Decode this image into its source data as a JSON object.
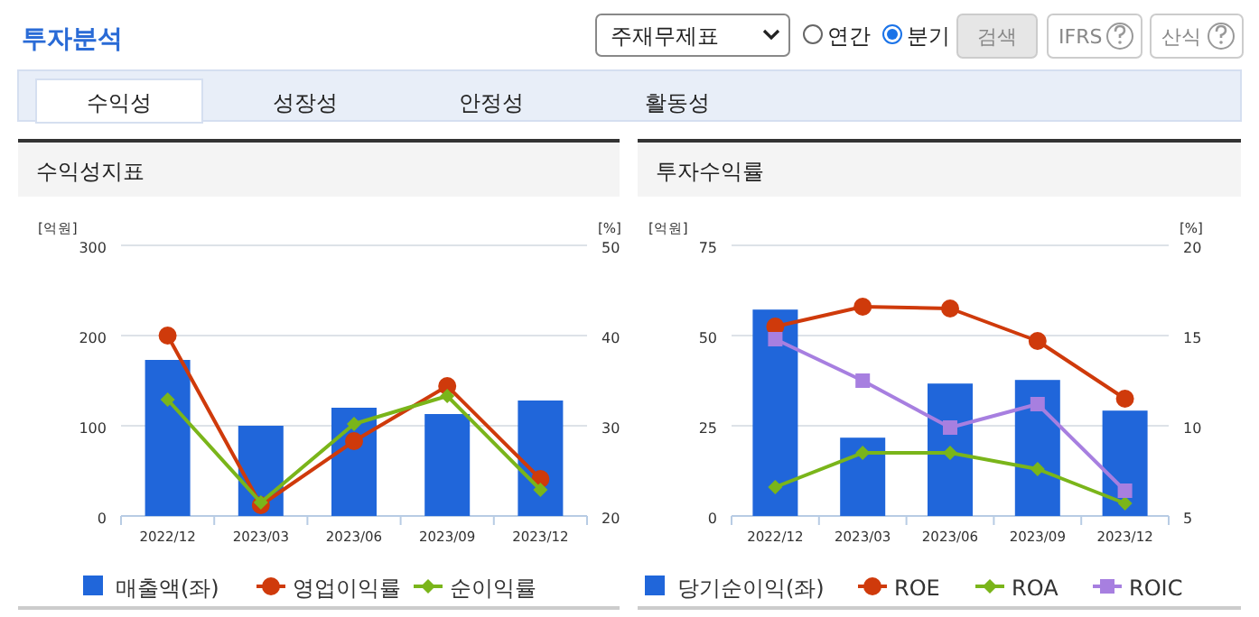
{
  "chart_data": [
    {
      "type": "other",
      "title": "투자분석",
      "annotations": [
        "주재무제표",
        "연간",
        "분기",
        "검색",
        "IFRS",
        "산식",
        "수익성",
        "성장성",
        "안정성",
        "활동성"
      ]
    },
    {
      "type": "bar",
      "title": "수익성지표",
      "ylabel": "[억원]",
      "y2label": "[%]",
      "categories": [
        "2022/12",
        "2023/03",
        "2023/06",
        "2023/09",
        "2023/12"
      ],
      "ylim": [
        0,
        300
      ],
      "yticks": [
        0,
        100,
        200,
        300
      ],
      "y2lim": [
        20,
        50
      ],
      "y2ticks": [
        20,
        30,
        40,
        50
      ],
      "grid": "y",
      "legend": "bottom",
      "series": [
        {
          "name": "매출액(좌)",
          "type": "bar",
          "color": "#2066da",
          "values": [
            173,
            100,
            120,
            113,
            128
          ]
        },
        {
          "name": "영업이익률",
          "type": "line",
          "axis": "y2",
          "marker": "circle",
          "color": "#cf3a0b",
          "values": [
            40.0,
            21.2,
            28.3,
            34.4,
            24.1
          ]
        },
        {
          "name": "순이익률",
          "type": "line",
          "axis": "y2",
          "marker": "diamond",
          "color": "#7ab51a",
          "values": [
            32.9,
            21.5,
            30.2,
            33.3,
            22.9
          ]
        }
      ]
    },
    {
      "type": "bar",
      "title": "투자수익률",
      "ylabel": "[억원]",
      "y2label": "[%]",
      "categories": [
        "2022/12",
        "2023/03",
        "2023/06",
        "2023/09",
        "2023/12"
      ],
      "ylim": [
        0,
        75
      ],
      "yticks": [
        0,
        25,
        50,
        75
      ],
      "y2lim": [
        5,
        20
      ],
      "y2ticks": [
        5,
        10,
        15,
        20
      ],
      "grid": "y",
      "legend": "bottom",
      "series": [
        {
          "name": "당기순이익(좌)",
          "type": "bar",
          "color": "#2066da",
          "values": [
            57.2,
            21.7,
            36.7,
            37.7,
            29.2
          ]
        },
        {
          "name": "ROE",
          "type": "line",
          "axis": "y2",
          "marker": "circle",
          "color": "#cf3a0b",
          "values": [
            15.5,
            16.6,
            16.5,
            14.7,
            11.5
          ]
        },
        {
          "name": "ROA",
          "type": "line",
          "axis": "y2",
          "marker": "diamond",
          "color": "#7ab51a",
          "values": [
            6.6,
            8.5,
            8.5,
            7.6,
            5.7
          ]
        },
        {
          "name": "ROIC",
          "type": "line",
          "axis": "y2",
          "marker": "square",
          "color": "#a77fe0",
          "values": [
            14.8,
            12.5,
            9.9,
            11.2,
            6.4
          ]
        }
      ]
    }
  ]
}
